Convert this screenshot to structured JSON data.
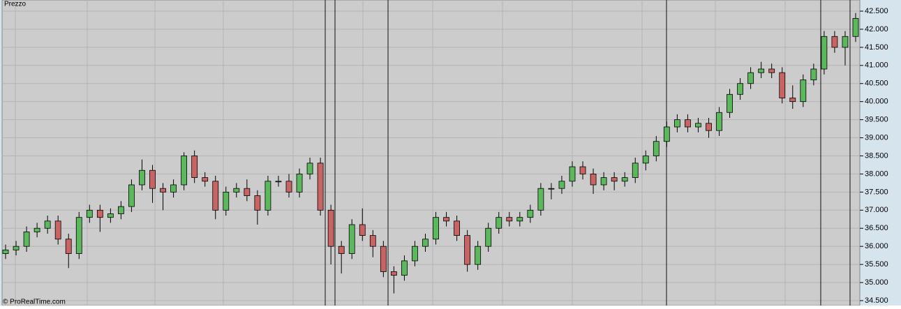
{
  "chart_data": {
    "type": "candlestick",
    "title": "Prezzo",
    "source": "© ProRealTime.com",
    "open": [
      35.8,
      35.9,
      36.0,
      36.4,
      36.5,
      36.7,
      36.2,
      35.8,
      36.8,
      37.0,
      36.8,
      36.9,
      37.1,
      37.7,
      38.1,
      37.6,
      37.5,
      37.7,
      38.5,
      37.9,
      37.8,
      37.0,
      37.5,
      37.6,
      37.4,
      37.0,
      37.8,
      37.8,
      37.5,
      38.0,
      38.3,
      37.0,
      36.0,
      35.8,
      36.6,
      36.3,
      36.0,
      35.3,
      35.2,
      35.6,
      36.0,
      36.2,
      36.8,
      36.7,
      36.3,
      35.5,
      36.0,
      36.5,
      36.8,
      36.7,
      36.8,
      37.0,
      37.6,
      37.6,
      37.8,
      38.2,
      38.0,
      37.7,
      37.9,
      37.8,
      37.9,
      38.3,
      38.5,
      38.9,
      39.3,
      39.5,
      39.3,
      39.4,
      39.2,
      39.7,
      40.2,
      40.5,
      40.8,
      40.9,
      40.8,
      40.1,
      40.0,
      40.6,
      40.9,
      41.8,
      41.5,
      41.8
    ],
    "high": [
      36.05,
      36.15,
      36.55,
      36.65,
      36.85,
      36.85,
      36.35,
      36.95,
      37.15,
      37.15,
      37.05,
      37.25,
      37.85,
      38.4,
      38.25,
      37.75,
      37.85,
      38.6,
      38.65,
      38.05,
      37.95,
      37.65,
      37.75,
      37.85,
      37.55,
      37.95,
      37.95,
      38.0,
      38.15,
      38.45,
      38.45,
      37.15,
      36.15,
      36.75,
      37.05,
      36.45,
      36.15,
      35.45,
      35.75,
      36.15,
      36.35,
      36.95,
      36.95,
      36.85,
      36.45,
      36.15,
      36.65,
      36.95,
      36.95,
      36.95,
      37.15,
      37.75,
      37.75,
      37.95,
      38.35,
      38.35,
      38.15,
      38.05,
      38.05,
      38.05,
      38.45,
      38.65,
      39.05,
      39.45,
      39.65,
      39.65,
      39.55,
      39.55,
      39.85,
      40.35,
      40.65,
      40.95,
      41.1,
      41.05,
      40.95,
      40.45,
      40.75,
      41.05,
      41.95,
      41.95,
      41.95,
      42.45
    ],
    "low": [
      35.65,
      35.75,
      35.85,
      36.25,
      36.35,
      36.05,
      35.4,
      35.65,
      36.65,
      36.4,
      36.65,
      36.75,
      36.95,
      37.55,
      37.2,
      37.0,
      37.35,
      37.55,
      37.75,
      37.65,
      36.75,
      36.85,
      37.35,
      37.25,
      36.6,
      36.85,
      37.65,
      37.35,
      37.35,
      37.85,
      36.85,
      35.5,
      35.25,
      35.65,
      36.15,
      35.7,
      35.15,
      34.7,
      35.05,
      35.45,
      35.85,
      36.05,
      36.55,
      36.15,
      35.3,
      35.35,
      35.85,
      36.35,
      36.55,
      36.55,
      36.65,
      36.85,
      37.3,
      37.45,
      37.65,
      37.85,
      37.45,
      37.55,
      37.55,
      37.65,
      37.75,
      38.1,
      38.35,
      38.75,
      39.15,
      39.15,
      39.15,
      39.0,
      39.05,
      39.55,
      40.05,
      40.35,
      40.65,
      40.65,
      39.95,
      39.8,
      39.85,
      40.45,
      40.75,
      41.35,
      41.0,
      41.65
    ],
    "close": [
      35.9,
      36.0,
      36.4,
      36.5,
      36.7,
      36.2,
      35.8,
      36.8,
      37.0,
      36.8,
      36.9,
      37.1,
      37.7,
      38.1,
      37.6,
      37.5,
      37.7,
      38.5,
      37.9,
      37.8,
      37.0,
      37.5,
      37.6,
      37.4,
      37.0,
      37.8,
      37.8,
      37.5,
      38.0,
      38.3,
      37.0,
      36.0,
      35.8,
      36.6,
      36.3,
      36.0,
      35.3,
      35.2,
      35.6,
      36.0,
      36.2,
      36.8,
      36.7,
      36.3,
      35.5,
      36.0,
      36.5,
      36.8,
      36.7,
      36.8,
      37.0,
      37.6,
      37.6,
      37.8,
      38.2,
      38.0,
      37.7,
      37.9,
      37.8,
      37.9,
      38.3,
      38.5,
      38.9,
      39.3,
      39.5,
      39.3,
      39.4,
      39.2,
      39.7,
      40.2,
      40.5,
      40.8,
      40.9,
      40.8,
      40.1,
      40.0,
      40.6,
      40.9,
      41.8,
      41.5,
      41.8,
      42.3
    ],
    "up_color": "#5cb85c",
    "down_color": "#c96464",
    "ylim": [
      34.365,
      42.808
    ],
    "yticks": [
      {
        "value": 34.5,
        "label": "34.500"
      },
      {
        "value": 35,
        "label": "35.000"
      },
      {
        "value": 35.5,
        "label": "35.500"
      },
      {
        "value": 36,
        "label": "36.000"
      },
      {
        "value": 36.5,
        "label": "36.500"
      },
      {
        "value": 37,
        "label": "37.000"
      },
      {
        "value": 37.5,
        "label": "37.500"
      },
      {
        "value": 38,
        "label": "38.000"
      },
      {
        "value": 38.5,
        "label": "38.500"
      },
      {
        "value": 39,
        "label": "39.000"
      },
      {
        "value": 39.5,
        "label": "39.500"
      },
      {
        "value": 40,
        "label": "40.000"
      },
      {
        "value": 40.5,
        "label": "40.500"
      },
      {
        "value": 41,
        "label": "41.000"
      },
      {
        "value": 41.5,
        "label": "41.500"
      },
      {
        "value": 42,
        "label": "42.000"
      },
      {
        "value": 42.5,
        "label": "42.500"
      }
    ],
    "grid": true
  }
}
